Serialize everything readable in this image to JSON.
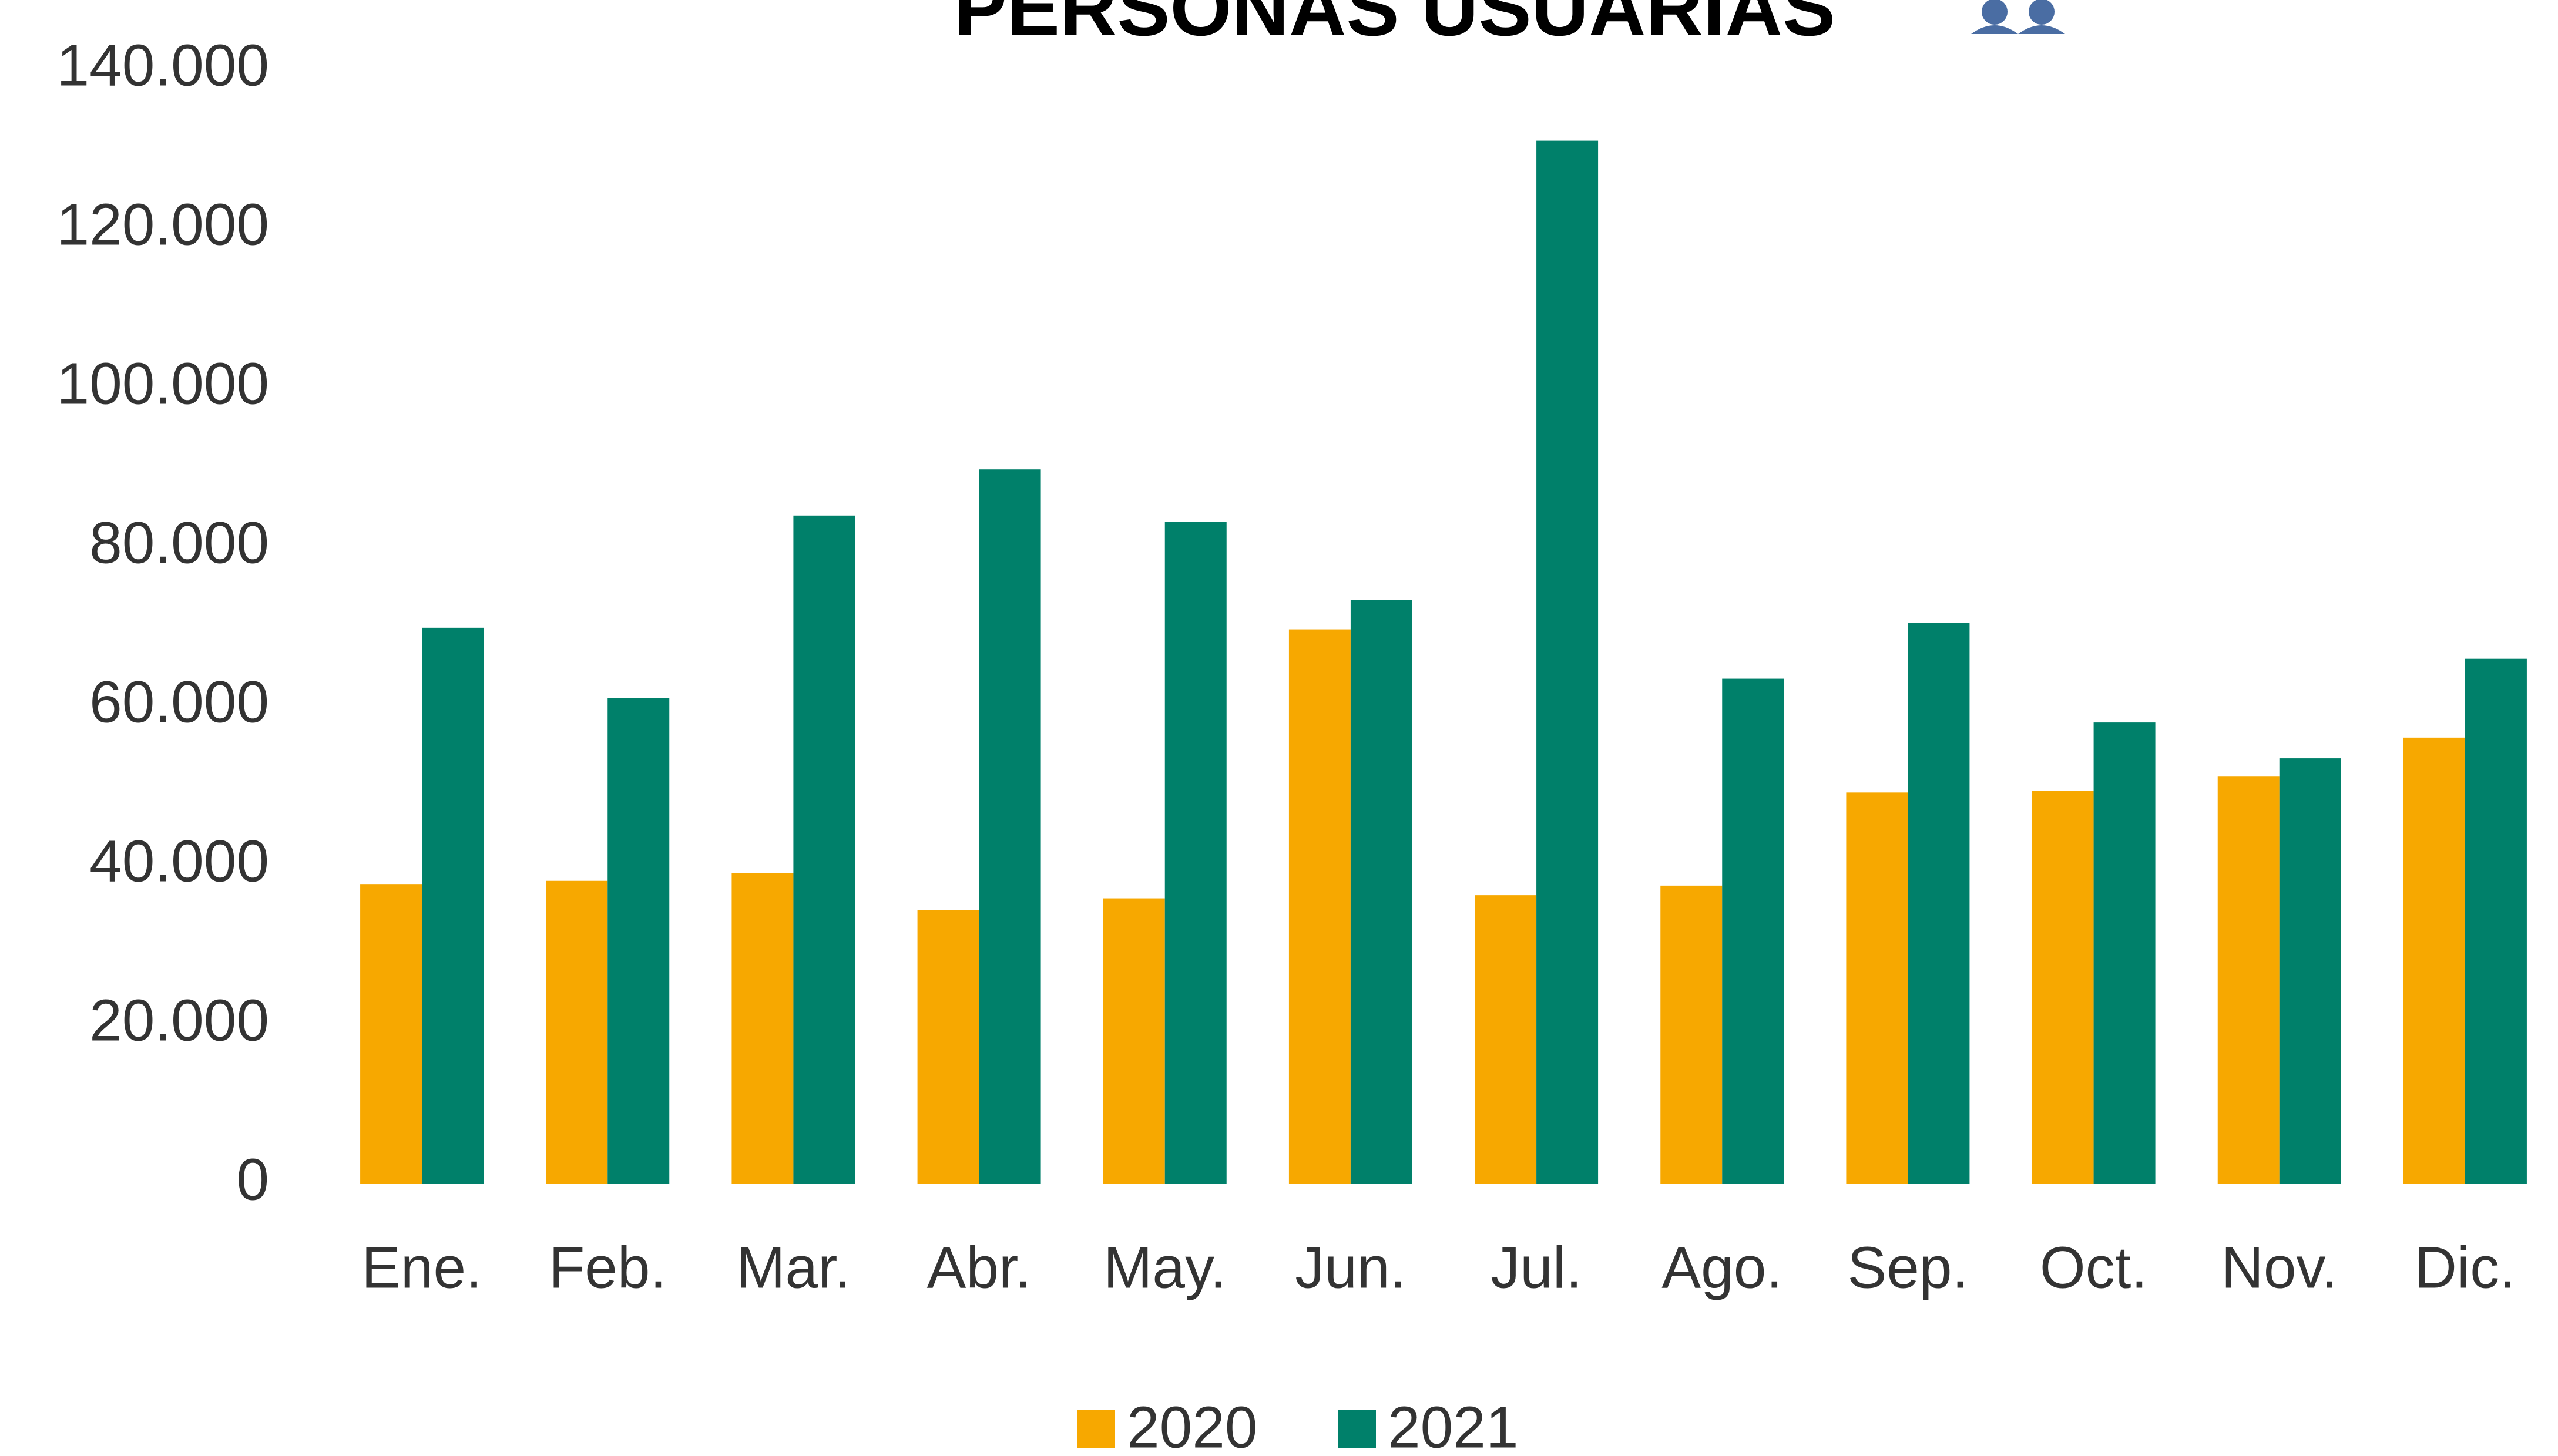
{
  "chart_data": {
    "type": "bar",
    "title": "PERSONAS USUARIAS",
    "categories": [
      "Ene.",
      "Feb.",
      "Mar.",
      "Abr.",
      "May.",
      "Jun.",
      "Jul.",
      "Ago.",
      "Sep.",
      "Oct.",
      "Nov.",
      "Dic."
    ],
    "series": [
      {
        "name": "2020",
        "color": "#f7a800",
        "values": [
          37700,
          38100,
          39100,
          34400,
          35900,
          69700,
          36300,
          37500,
          49200,
          49400,
          51200,
          56100
        ]
      },
      {
        "name": "2021",
        "color": "#00806a",
        "values": [
          69900,
          61100,
          84000,
          89800,
          83200,
          73400,
          131100,
          63500,
          70500,
          58000,
          53500,
          66000
        ]
      }
    ],
    "ylim": [
      0,
      140000
    ],
    "yticks": [
      0,
      {
        "value": 20000,
        "label": "20.000"
      },
      {
        "value": 40000,
        "label": "40.000"
      },
      {
        "value": 60000,
        "label": "60.000"
      },
      {
        "value": 80000,
        "label": "80.000"
      },
      {
        "value": 100000,
        "label": "100.000"
      },
      {
        "value": 120000,
        "label": "120.000"
      },
      {
        "value": 140000,
        "label": "140.000"
      }
    ],
    "grid": false,
    "legend": "bottom"
  }
}
